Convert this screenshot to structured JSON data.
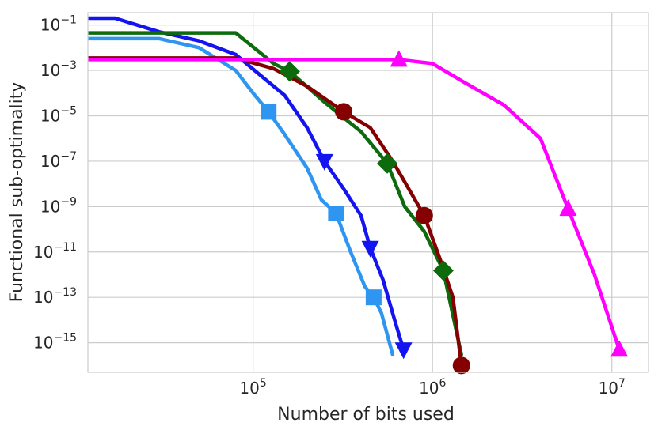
{
  "chart_data": {
    "type": "line",
    "title": "",
    "xlabel": "Number of bits used",
    "ylabel": "Functional sub-optimality",
    "x_scale": "log",
    "y_scale": "log",
    "xlim": [
      12000,
      16000000
    ],
    "ylim": [
      5e-17,
      0.35
    ],
    "grid": true,
    "legend": "none",
    "x_ticks": [
      {
        "base": "10",
        "exp": "5",
        "value": 100000
      },
      {
        "base": "10",
        "exp": "6",
        "value": 1000000
      },
      {
        "base": "10",
        "exp": "7",
        "value": 10000000
      }
    ],
    "y_ticks": [
      {
        "base": "10",
        "exp": "−1",
        "value": 0.1
      },
      {
        "base": "10",
        "exp": "−3",
        "value": 0.001
      },
      {
        "base": "10",
        "exp": "−5",
        "value": 1e-05
      },
      {
        "base": "10",
        "exp": "−7",
        "value": 1e-07
      },
      {
        "base": "10",
        "exp": "−9",
        "value": 1e-09
      },
      {
        "base": "10",
        "exp": "−11",
        "value": 1e-11
      },
      {
        "base": "10",
        "exp": "−13",
        "value": 1e-13
      },
      {
        "base": "10",
        "exp": "−15",
        "value": 1e-15
      }
    ],
    "series": [
      {
        "color": "#2e96f0",
        "marker": "square",
        "x": [
          12000,
          30000,
          50000,
          80000,
          100000,
          122000,
          150000,
          200000,
          240000,
          290000,
          350000,
          420000,
          470000,
          520000,
          600000
        ],
        "y": [
          0.025,
          0.025,
          0.01,
          0.001,
          0.0001,
          1.5e-05,
          1.5e-06,
          5e-08,
          2e-09,
          5e-10,
          1e-11,
          3e-13,
          1e-13,
          2e-14,
          3e-16
        ],
        "marker_index": [
          5,
          9,
          12
        ]
      },
      {
        "color": "#1414f0",
        "marker": "triangle-down",
        "x": [
          12000,
          17000,
          30000,
          50000,
          80000,
          110000,
          150000,
          200000,
          250000,
          320000,
          400000,
          450000,
          530000,
          620000,
          690000
        ],
        "y": [
          0.2,
          0.2,
          0.05,
          0.02,
          0.005,
          0.0006,
          8e-05,
          3e-06,
          1e-07,
          6e-09,
          4e-10,
          1.5e-11,
          6e-13,
          8e-15,
          5e-16
        ],
        "marker_index": [
          8,
          11,
          14
        ]
      },
      {
        "color": "#0d6b0d",
        "marker": "diamond",
        "x": [
          12000,
          30000,
          80000,
          130000,
          160000,
          250000,
          400000,
          560000,
          700000,
          900000,
          1150000,
          1450000
        ],
        "y": [
          0.045,
          0.045,
          0.045,
          0.002,
          0.0009,
          4e-05,
          2e-06,
          8e-08,
          1e-09,
          8e-11,
          1.5e-12,
          3e-16
        ],
        "marker_index": [
          4,
          7,
          10
        ]
      },
      {
        "color": "#850000",
        "marker": "circle",
        "x": [
          12000,
          30000,
          80000,
          130000,
          200000,
          320000,
          450000,
          600000,
          900000,
          1100000,
          1300000,
          1450000
        ],
        "y": [
          0.0035,
          0.0035,
          0.0035,
          0.0012,
          0.0002,
          1.5e-05,
          3e-06,
          1e-07,
          4e-10,
          5e-12,
          1e-13,
          1e-16
        ],
        "marker_index": [
          5,
          8,
          11
        ]
      },
      {
        "color": "#ff00ff",
        "marker": "triangle-up",
        "x": [
          12000,
          300000,
          650000,
          1000000,
          1500000,
          2500000,
          4000000,
          5700000,
          8000000,
          11000000
        ],
        "y": [
          0.003,
          0.003,
          0.003,
          0.002,
          0.0003,
          3e-05,
          1e-06,
          8e-10,
          1e-12,
          5e-16
        ],
        "marker_index": [
          2,
          7,
          9
        ]
      }
    ]
  }
}
